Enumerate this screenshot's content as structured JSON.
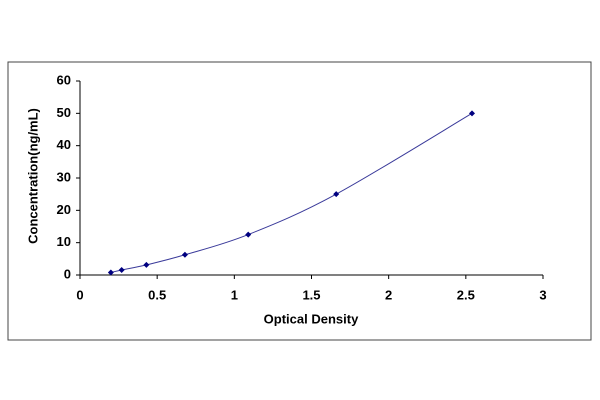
{
  "chart_data": {
    "type": "scatter",
    "x_label": "Optical Density",
    "y_label": "Concentration(ng/mL)",
    "series": [
      {
        "color": "#000080",
        "line_color": "#3a3a9a",
        "x": [
          0.2,
          0.27,
          0.43,
          0.68,
          1.09,
          1.66,
          2.54
        ],
        "values": [
          0.78,
          1.56,
          3.12,
          6.25,
          12.5,
          25,
          50
        ]
      }
    ],
    "xlim": [
      0,
      3
    ],
    "xticks": [
      0,
      0.5,
      1,
      1.5,
      2,
      2.5,
      3
    ],
    "ylim": [
      0,
      60
    ],
    "yticks": [
      0,
      10,
      20,
      30,
      40,
      50,
      60
    ],
    "grid": false
  }
}
